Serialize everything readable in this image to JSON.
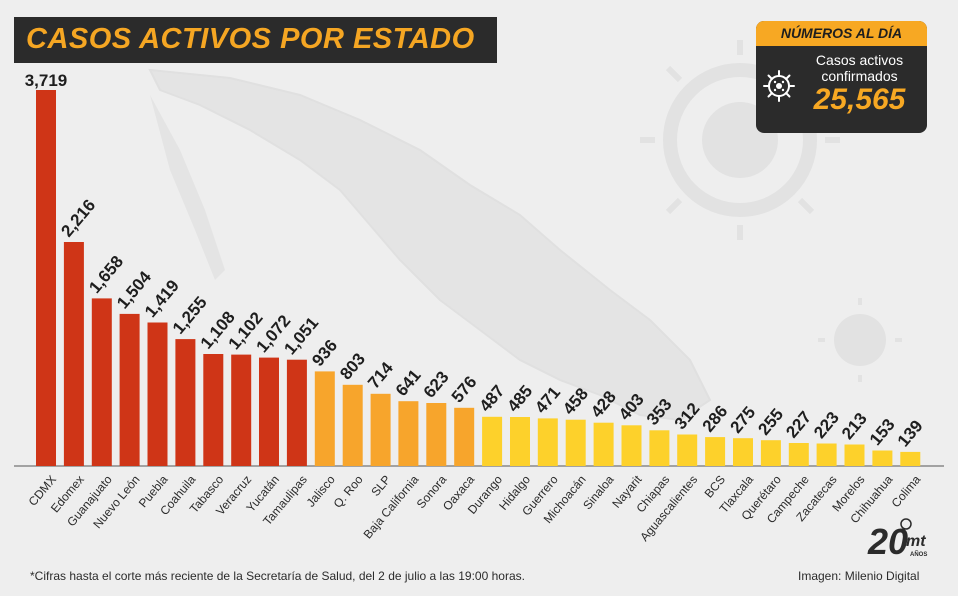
{
  "title": "CASOS ACTIVOS POR ESTADO",
  "stats": {
    "header": "NÚMEROS AL DÍA",
    "label": "Casos activos confirmados",
    "value": "25,565",
    "icon": "virus-icon"
  },
  "footnote": "*Cifras hasta el corte más reciente de la Secretaría de Salud, del 2 de julio a las 19:00 horas.",
  "credit": "Imagen: Milenio Digital",
  "logo": {
    "main": "20",
    "brand": "mt",
    "sub": "AÑOS"
  },
  "colors": {
    "background": "#eeeeee",
    "dark": "#2b2b2b",
    "accent": "#f7a823",
    "red": "#cf3517",
    "orange": "#f7a52c",
    "yellow": "#fdd12b"
  },
  "chart_data": {
    "type": "bar",
    "title": "CASOS ACTIVOS POR ESTADO",
    "xlabel": "",
    "ylabel": "",
    "ylim": [
      0,
      3719
    ],
    "grid": false,
    "categories": [
      "CDMX",
      "Edomex",
      "Guanajuato",
      "Nuevo León",
      "Puebla",
      "Coahuila",
      "Tabasco",
      "Veracruz",
      "Yucatán",
      "Tamaulipas",
      "Jalisco",
      "Q. Roo",
      "SLP",
      "Baja California",
      "Sonora",
      "Oaxaca",
      "Durango",
      "Hidalgo",
      "Guerrero",
      "Michoacán",
      "Sinaloa",
      "Nayarit",
      "Chiapas",
      "Aguascalientes",
      "BCS",
      "Tlaxcala",
      "Querétaro",
      "Campeche",
      "Zacatecas",
      "Morelos",
      "Chihuahua",
      "Colima"
    ],
    "values": [
      3719,
      2216,
      1658,
      1504,
      1419,
      1255,
      1108,
      1102,
      1072,
      1051,
      936,
      803,
      714,
      641,
      623,
      576,
      487,
      485,
      471,
      458,
      428,
      403,
      353,
      312,
      286,
      275,
      255,
      227,
      223,
      213,
      153,
      139
    ],
    "value_labels": [
      "3,719",
      "2,216",
      "1,658",
      "1,504",
      "1,419",
      "1,255",
      "1,108",
      "1,102",
      "1,072",
      "1,051",
      "936",
      "803",
      "714",
      "641",
      "623",
      "576",
      "487",
      "485",
      "471",
      "458",
      "428",
      "403",
      "353",
      "312",
      "286",
      "275",
      "255",
      "227",
      "223",
      "213",
      "153",
      "139"
    ]
  }
}
